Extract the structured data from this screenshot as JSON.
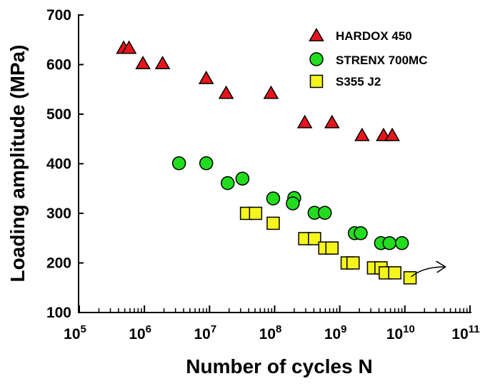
{
  "chart_data": {
    "type": "scatter",
    "x_scale": "log",
    "xlabel": "Number of cycles N",
    "ylabel": "Loading amplitude (MPa)",
    "xlim": [
      100000,
      100000000000
    ],
    "ylim": [
      100,
      700
    ],
    "y_ticks": [
      "100",
      "200",
      "300",
      "400",
      "500",
      "600",
      "700"
    ],
    "x_ticks": [
      {
        "base": "10",
        "exp": "5"
      },
      {
        "base": "10",
        "exp": "6"
      },
      {
        "base": "10",
        "exp": "7"
      },
      {
        "base": "10",
        "exp": "8"
      },
      {
        "base": "10",
        "exp": "9"
      },
      {
        "base": "10",
        "exp": "10"
      },
      {
        "base": "10",
        "exp": "11"
      }
    ],
    "grid": false,
    "legend_position": "top-right",
    "series": [
      {
        "name": "HARDOX 450",
        "marker": "triangle",
        "color": "#e8141c",
        "points": [
          {
            "x": 480000,
            "y": 633
          },
          {
            "x": 580000,
            "y": 633
          },
          {
            "x": 950000,
            "y": 602
          },
          {
            "x": 1900000,
            "y": 602
          },
          {
            "x": 8900000,
            "y": 572
          },
          {
            "x": 18000000,
            "y": 542
          },
          {
            "x": 88000000,
            "y": 542
          },
          {
            "x": 290000000,
            "y": 483
          },
          {
            "x": 760000000,
            "y": 483
          },
          {
            "x": 2200000000,
            "y": 457
          },
          {
            "x": 4700000000,
            "y": 457
          },
          {
            "x": 6400000000,
            "y": 457
          }
        ]
      },
      {
        "name": "STRENX 700MC",
        "marker": "circle",
        "color": "#22dc1e",
        "points": [
          {
            "x": 3400000,
            "y": 401
          },
          {
            "x": 8900000,
            "y": 401
          },
          {
            "x": 19000000,
            "y": 361
          },
          {
            "x": 32000000,
            "y": 370
          },
          {
            "x": 95000000,
            "y": 330
          },
          {
            "x": 200000000,
            "y": 331
          },
          {
            "x": 190000000,
            "y": 320
          },
          {
            "x": 410000000,
            "y": 301
          },
          {
            "x": 590000000,
            "y": 301
          },
          {
            "x": 1700000000,
            "y": 260
          },
          {
            "x": 2100000000,
            "y": 260
          },
          {
            "x": 4300000000,
            "y": 240
          },
          {
            "x": 5800000000,
            "y": 240
          },
          {
            "x": 9000000000,
            "y": 240
          }
        ]
      },
      {
        "name": "S355 J2",
        "marker": "square",
        "color": "#f5f51e",
        "points": [
          {
            "x": 37000000,
            "y": 300
          },
          {
            "x": 51000000,
            "y": 300
          },
          {
            "x": 95000000,
            "y": 280
          },
          {
            "x": 290000000,
            "y": 249
          },
          {
            "x": 410000000,
            "y": 249
          },
          {
            "x": 590000000,
            "y": 230
          },
          {
            "x": 760000000,
            "y": 230
          },
          {
            "x": 1300000000,
            "y": 200
          },
          {
            "x": 1600000000,
            "y": 200
          },
          {
            "x": 3300000000,
            "y": 190
          },
          {
            "x": 4300000000,
            "y": 190
          },
          {
            "x": 5000000000,
            "y": 180
          },
          {
            "x": 7000000000,
            "y": 180
          },
          {
            "x": 12000000000,
            "y": 170
          }
        ]
      }
    ],
    "annotations": [
      {
        "type": "runout-arrow",
        "from": {
          "x": 12500000000,
          "y": 172
        },
        "to": {
          "x": 42000000000,
          "y": 192
        }
      }
    ]
  }
}
